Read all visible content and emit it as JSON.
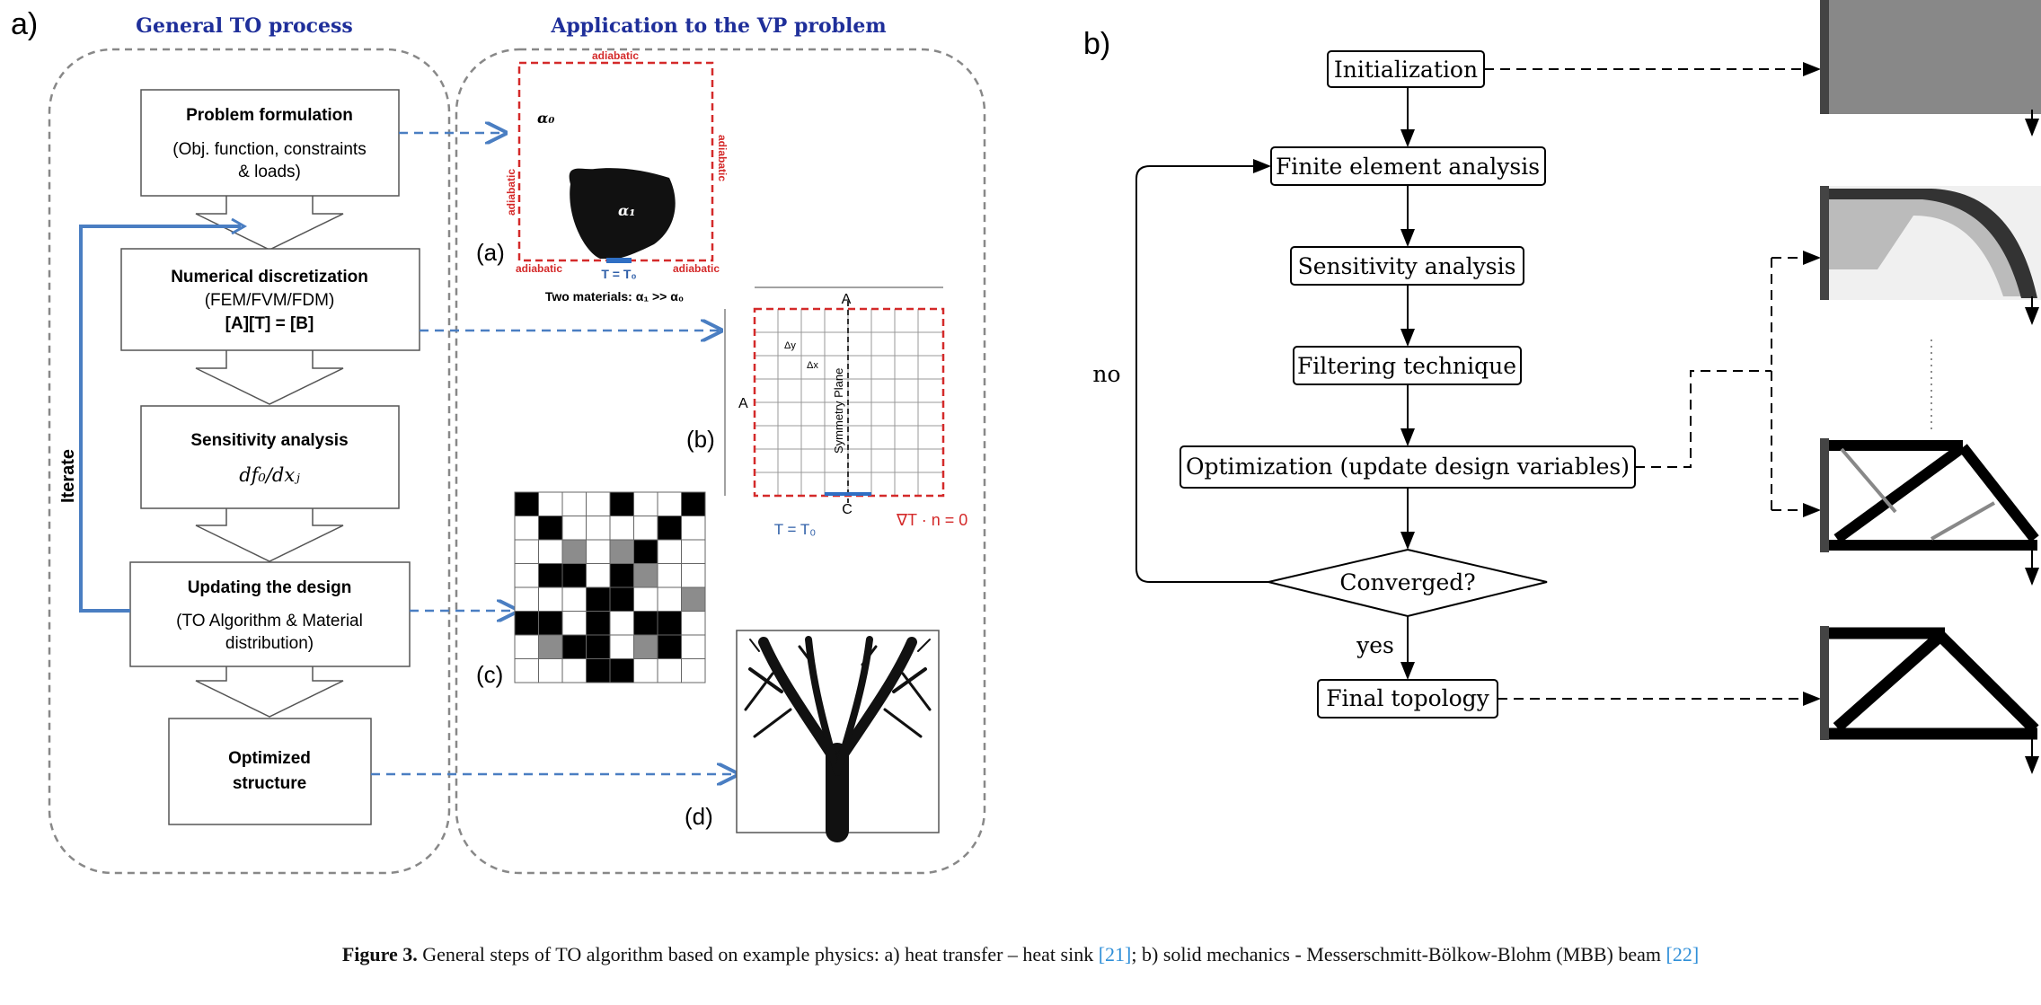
{
  "panel_a": {
    "label": "a)",
    "header_left": "General TO process",
    "header_right": "Application to the VP problem",
    "steps": [
      {
        "title": "Problem formulation",
        "line1": "(Obj. function, constraints",
        "line2": "& loads)"
      },
      {
        "title": "Numerical discretization",
        "line1": "(FEM/FVM/FDM)",
        "line2": "[A][T] = [B]"
      },
      {
        "title": "Sensitivity analysis",
        "line1": "df₀/dxⱼ"
      },
      {
        "title": "Updating the design",
        "line1": "(TO Algorithm & Material",
        "line2": "distribution)"
      },
      {
        "title": "Optimized",
        "line1": "structure"
      }
    ],
    "iterate": "Iterate",
    "sub_a": {
      "label": "(a)",
      "adiabatic": "adiabatic",
      "alpha0": "α₀",
      "alpha1": "α₁",
      "temp": "T = T₀",
      "materials": "Two materials: α₁ >> α₀"
    },
    "sub_b": {
      "label": "(b)",
      "dim_a": "A",
      "dy": "Δy",
      "dx": "Δx",
      "symmetry": "Symmetry Plane",
      "c": "C",
      "temp": "T = T₀",
      "grad": "∇T · n = 0"
    },
    "sub_c": {
      "label": "(c)"
    },
    "sub_d": {
      "label": "(d)"
    }
  },
  "panel_b": {
    "label": "b)",
    "initialization": "Initialization",
    "fea": "Finite element analysis",
    "sensitivity": "Sensitivity analysis",
    "filtering": "Filtering technique",
    "optimization": "Optimization (update design variables)",
    "converged": "Converged?",
    "no": "no",
    "yes": "yes",
    "final": "Final topology"
  },
  "caption": {
    "figure": "Figure 3.",
    "text": " General steps of TO algorithm based on example physics: a) heat transfer – heat sink ",
    "ref1": "[21]",
    "text2": "; b) solid mechanics - Messerschmitt-Bölkow-Blohm (MBB) beam ",
    "ref2": "[22]"
  },
  "colors": {
    "blue_header": "#1f2f9a",
    "arrow_blue": "#4a7ec2",
    "adiabatic_red": "#d42a2a",
    "grey_box": "#888888"
  }
}
